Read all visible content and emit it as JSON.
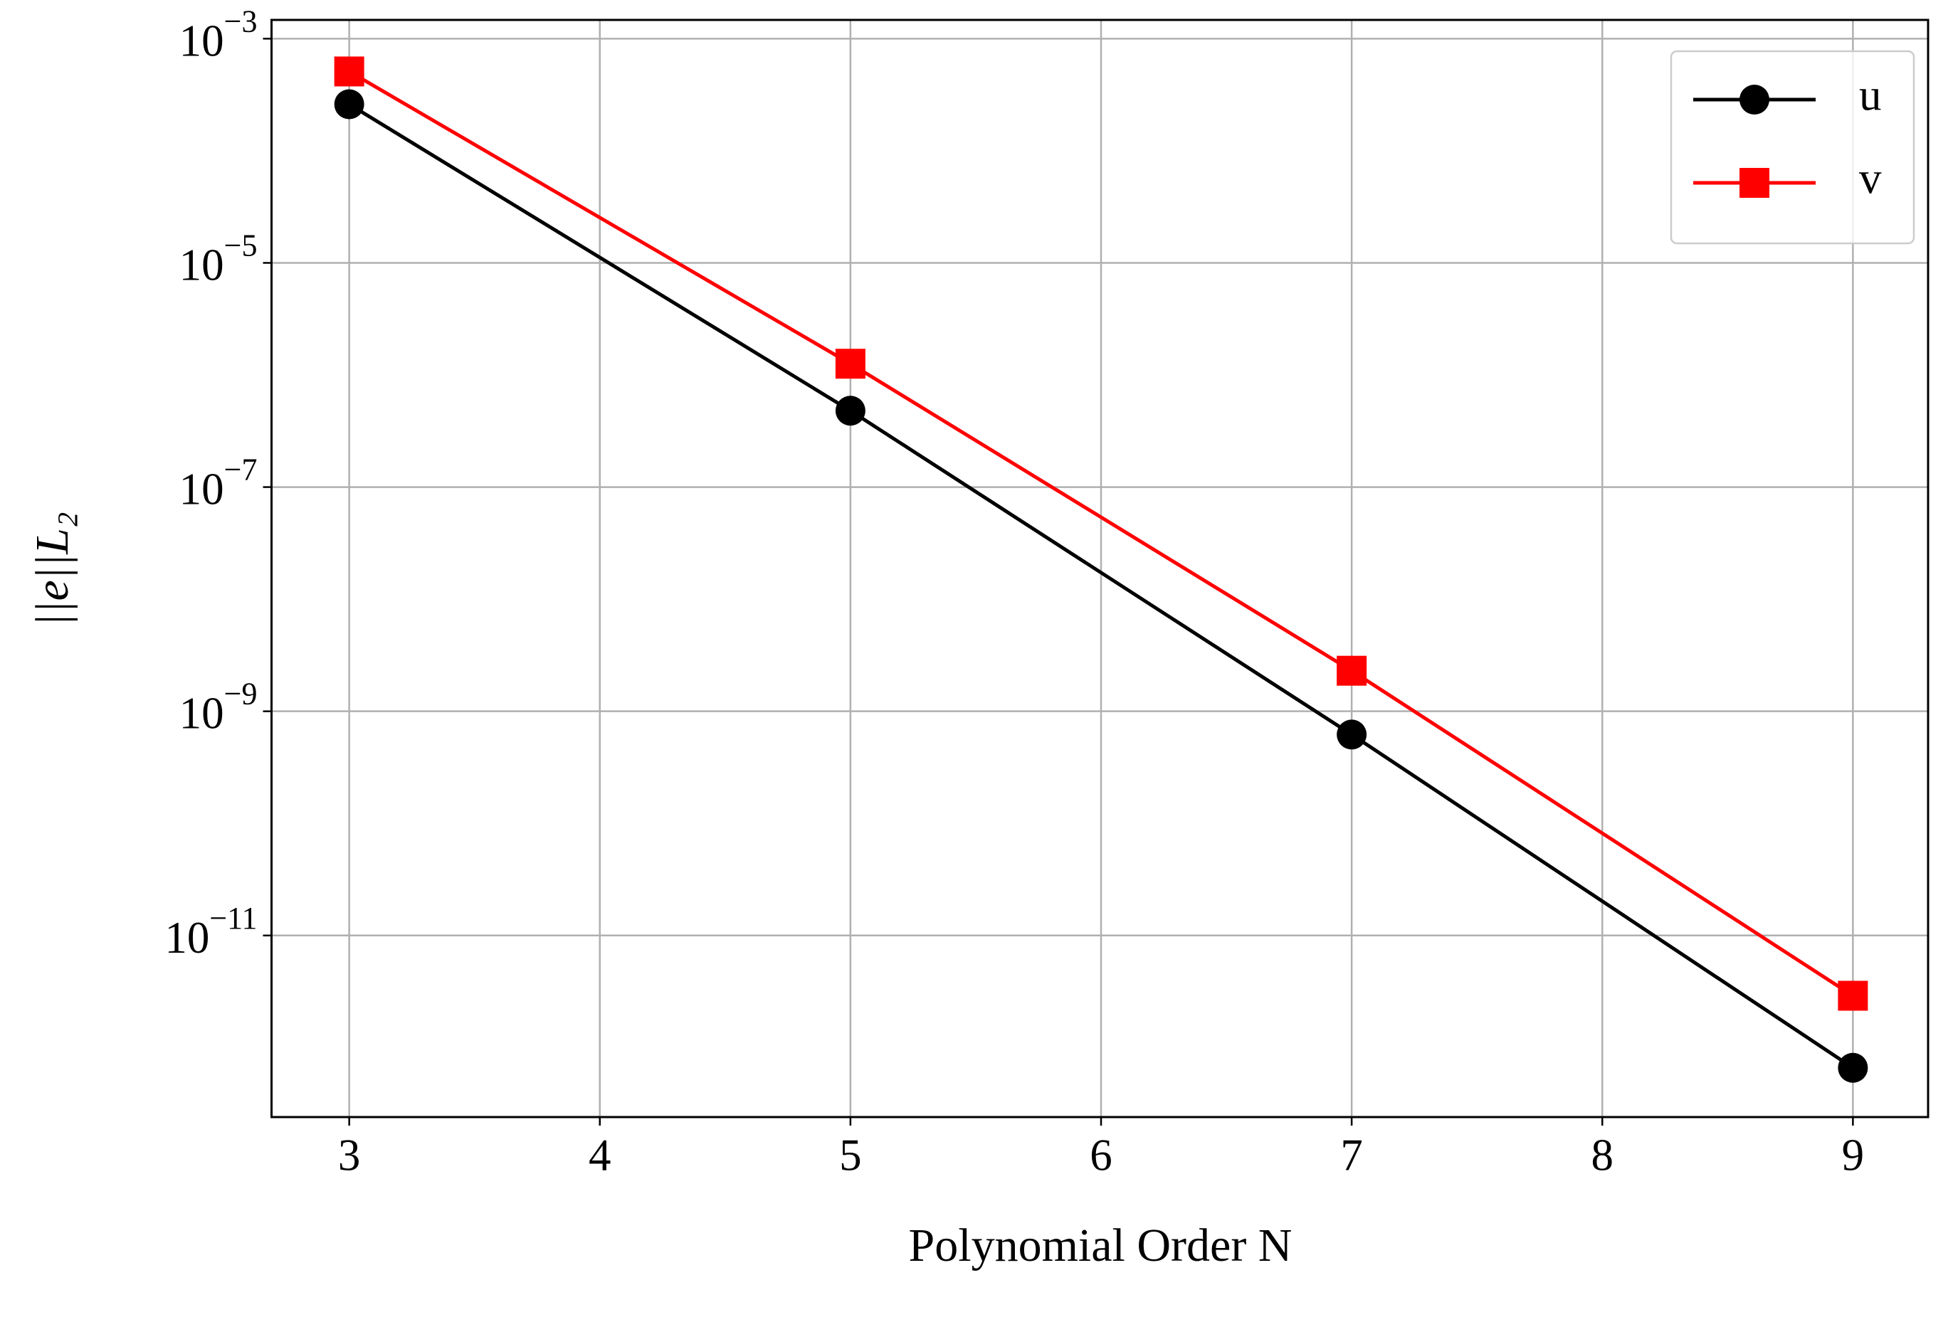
{
  "chart_data": {
    "type": "line",
    "x_label": "Polynomial Order N",
    "y_label": "||e||L₂",
    "x": [
      3,
      5,
      7,
      9
    ],
    "series": [
      {
        "name": "u",
        "color": "#000000",
        "marker": "circle",
        "values": [
          0.00026,
          4.8e-07,
          6.2e-10,
          6.6e-13
        ]
      },
      {
        "name": "v",
        "color": "#ff0000",
        "marker": "square",
        "values": [
          0.00051,
          1.26e-06,
          2.3e-09,
          2.9e-12
        ]
      }
    ],
    "xlim": [
      2.69,
      9.3
    ],
    "ylim": [
      2.4e-13,
      0.00147
    ],
    "xticks": [
      3,
      4,
      5,
      6,
      7,
      8,
      9
    ],
    "yticks": [
      {
        "value": 0.001,
        "label": "10^−3"
      },
      {
        "value": 1e-05,
        "label": "10^−5"
      },
      {
        "value": 1e-07,
        "label": "10^−7"
      },
      {
        "value": 1e-09,
        "label": "10^−9"
      },
      {
        "value": 1e-11,
        "label": "10^−11"
      }
    ],
    "y_scale": "log",
    "grid": true,
    "legend": "upper right"
  }
}
